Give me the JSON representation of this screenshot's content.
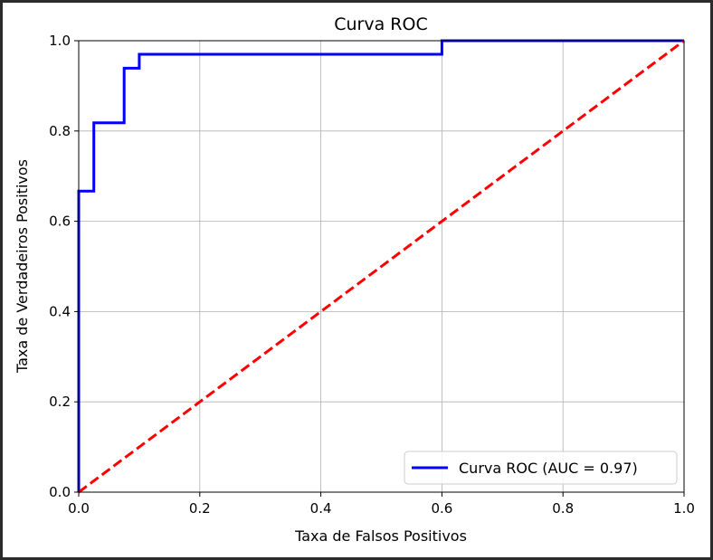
{
  "chart_data": {
    "type": "line",
    "title": "Curva ROC",
    "xlabel": "Taxa de Falsos Positivos",
    "ylabel": "Taxa de Verdadeiros Positivos",
    "xlim": [
      0.0,
      1.0
    ],
    "ylim": [
      0.0,
      1.0
    ],
    "xticks": [
      "0.0",
      "0.2",
      "0.4",
      "0.6",
      "0.8",
      "1.0"
    ],
    "yticks": [
      "0.0",
      "0.2",
      "0.4",
      "0.6",
      "0.8",
      "1.0"
    ],
    "grid": true,
    "legend_position": "bottom-right",
    "series": [
      {
        "name": "Curva ROC (AUC = 0.97)",
        "color": "#0000ff",
        "style": "solid",
        "x": [
          0.0,
          0.0,
          0.0,
          0.025,
          0.025,
          0.075,
          0.075,
          0.1,
          0.1,
          0.6,
          0.6,
          1.0
        ],
        "y": [
          0.0,
          0.03,
          0.667,
          0.667,
          0.818,
          0.818,
          0.939,
          0.939,
          0.97,
          0.97,
          1.0,
          1.0
        ]
      },
      {
        "color": "#ff0000",
        "style": "dashed",
        "x": [
          0.0,
          1.0
        ],
        "y": [
          0.0,
          1.0
        ]
      }
    ]
  }
}
